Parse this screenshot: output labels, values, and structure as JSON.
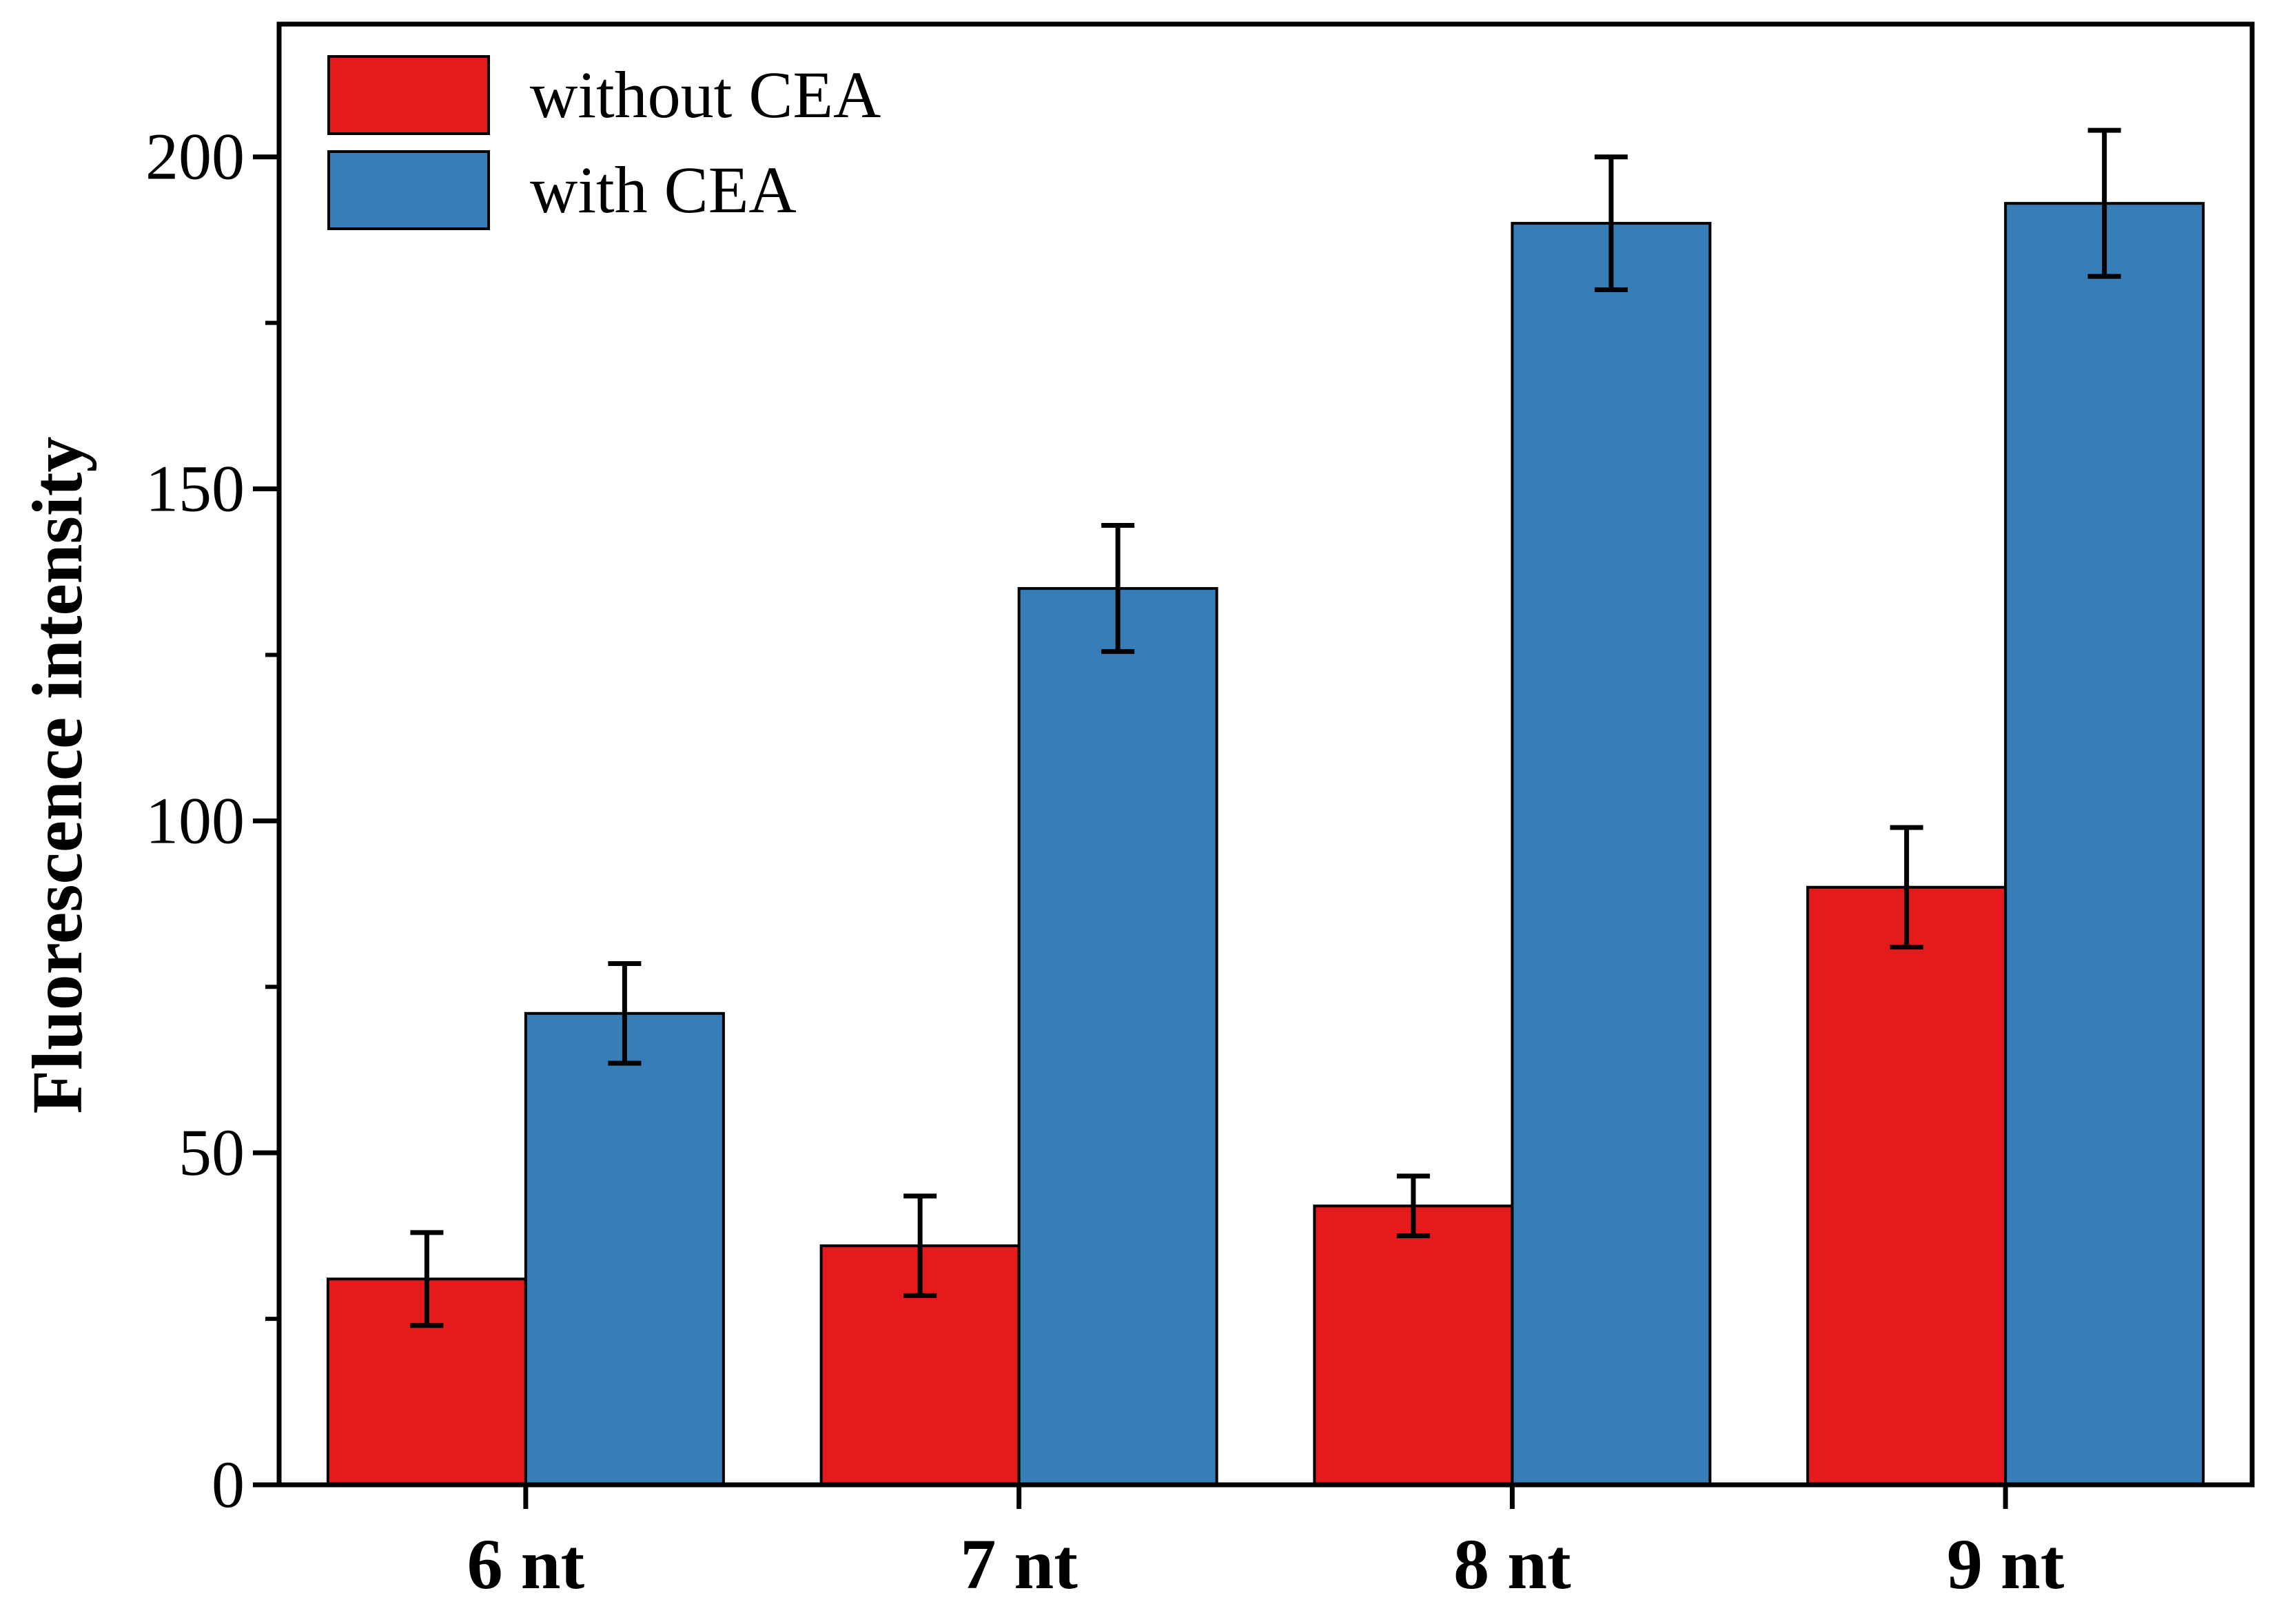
{
  "chart_data": {
    "type": "bar",
    "title": "",
    "xlabel": "",
    "ylabel": "Fluorescence intensity",
    "ylim": [
      0,
      220
    ],
    "y_ticks": [
      0,
      50,
      100,
      150,
      200
    ],
    "y_minor_ticks": [
      25,
      75,
      125,
      175
    ],
    "grid": false,
    "legend_position": "top-left",
    "categories": [
      "6 nt",
      "7 nt",
      "8 nt",
      "9 nt"
    ],
    "series": [
      {
        "name": "without CEA",
        "color": "#e41a1c",
        "values": [
          31,
          36,
          42,
          90
        ],
        "errors": [
          7,
          7.5,
          4.5,
          9
        ]
      },
      {
        "name": "with CEA",
        "color": "#377eb8",
        "values": [
          71,
          135,
          190,
          193
        ],
        "errors": [
          7.5,
          9.5,
          10,
          11
        ]
      }
    ]
  }
}
